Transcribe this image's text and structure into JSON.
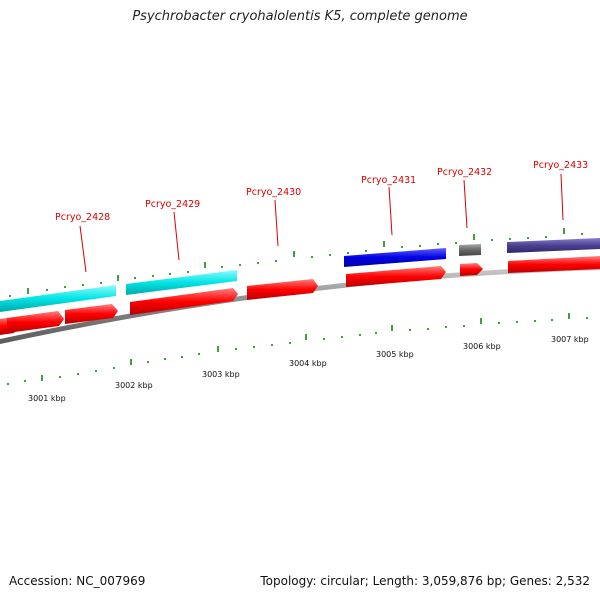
{
  "title": "Psychrobacter cryohalolentis K5, complete genome",
  "footer": {
    "accession_label": "Accession:",
    "accession": "NC_007969",
    "topology_text": "Topology: circular; Length: 3,059,876 bp; Genes: 2,532"
  },
  "gene_labels": [
    "Pcryo_2428",
    "Pcryo_2429",
    "Pcryo_2430",
    "Pcryo_2431",
    "Pcryo_2432",
    "Pcryo_2433"
  ],
  "kbp_labels": [
    "3001 kbp",
    "3002 kbp",
    "3003 kbp",
    "3004 kbp",
    "3005 kbp",
    "3006 kbp",
    "3007 kbp"
  ],
  "colors": {
    "cyan": "#00e5e5",
    "red": "#ff0000",
    "blue": "#0000e6",
    "gray": "#666666",
    "slate": "#4b3f8f",
    "tick": "#008000",
    "label": "#dd0000",
    "backbone": "#888888"
  }
}
